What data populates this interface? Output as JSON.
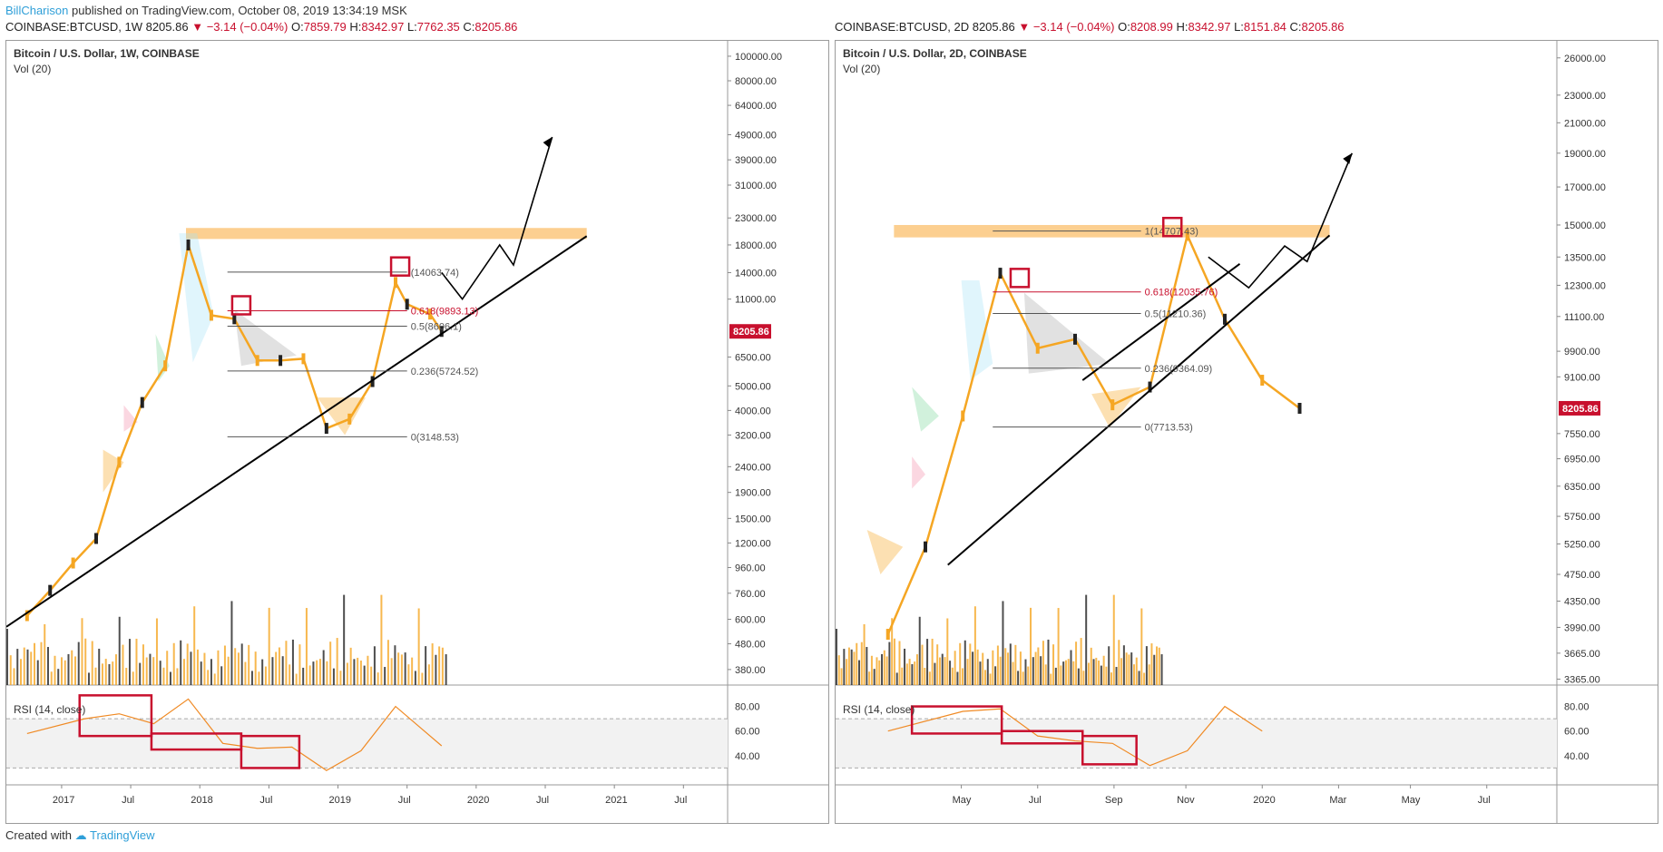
{
  "header": {
    "author": "BillCharison",
    "published_text": "published on TradingView.com, October 08, 2019 13:34:19 MSK"
  },
  "footer": {
    "created_with": "Created with",
    "brand": "TradingView"
  },
  "accent_colors": {
    "up": "#f5a623",
    "down": "#222222",
    "price_tag": "#c8102e",
    "resistance": "#fbbf6b",
    "highlight_box": "#c8102e",
    "rsi_line": "#f08a24"
  },
  "left": {
    "symbol_label": "COINBASE:BTCUSD, 1W",
    "last": "8205.86",
    "change": "▼ −3.14 (−0.04%)",
    "ohlc": [
      {
        "k": "O:",
        "v": "7859.79"
      },
      {
        "k": "H:",
        "v": "8342.97"
      },
      {
        "k": "L:",
        "v": "7762.35"
      },
      {
        "k": "C:",
        "v": "8205.86"
      }
    ],
    "title": "Bitcoin / U.S. Dollar, 1W, COINBASE",
    "vol": "Vol (20)",
    "rsi": "RSI (14, close)",
    "price_tag": "8205.86"
  },
  "right": {
    "symbol_label": "COINBASE:BTCUSD, 2D",
    "last": "8205.86",
    "change": "▼ −3.14 (−0.04%)",
    "ohlc": [
      {
        "k": "O:",
        "v": "8208.99"
      },
      {
        "k": "H:",
        "v": "8342.97"
      },
      {
        "k": "L:",
        "v": "8151.84"
      },
      {
        "k": "C:",
        "v": "8205.86"
      }
    ],
    "title": "Bitcoin / U.S. Dollar, 2D, COINBASE",
    "vol": "Vol (20)",
    "rsi": "RSI (14, close)",
    "price_tag": "8205.86"
  },
  "chart_data": [
    {
      "type": "line",
      "title": "Bitcoin / U.S. Dollar, 1W, COINBASE",
      "scale": "log",
      "y_ticks": [
        "100000.00",
        "80000.00",
        "64000.00",
        "49000.00",
        "39000.00",
        "31000.00",
        "23000.00",
        "18000.00",
        "14000.00",
        "11000.00",
        "8205.86",
        "6500.00",
        "5000.00",
        "4000.00",
        "3200.00",
        "2400.00",
        "1900.00",
        "1500.00",
        "1200.00",
        "960.00",
        "760.00",
        "600.00",
        "480.00",
        "380.00"
      ],
      "x_ticks": [
        "2017",
        "Jul",
        "2018",
        "Jul",
        "2019",
        "Jul",
        "2020",
        "Jul",
        "2021",
        "Jul"
      ],
      "rsi_ticks": [
        "80.00",
        "60.00",
        "40.00"
      ],
      "price_series": {
        "name": "BTCUSD weekly close (approx.)",
        "x": [
          "2016-10",
          "2016-12",
          "2017-02",
          "2017-04",
          "2017-06",
          "2017-08",
          "2017-10",
          "2017-12",
          "2018-02",
          "2018-04",
          "2018-06",
          "2018-08",
          "2018-10",
          "2018-12",
          "2019-02",
          "2019-04",
          "2019-06",
          "2019-07",
          "2019-09",
          "2019-10"
        ],
        "y": [
          620,
          780,
          1000,
          1250,
          2500,
          4300,
          6000,
          18000,
          9500,
          9200,
          6300,
          6300,
          6400,
          3400,
          3700,
          5200,
          12800,
          10500,
          9600,
          8205
        ]
      },
      "fib_levels": [
        {
          "label": "(14063.74)",
          "value": 14063.74
        },
        {
          "label": "0.618(9893.13)",
          "value": 9893.13
        },
        {
          "label": "0.5(8606.1)",
          "value": 8606.1
        },
        {
          "label": "0.236(5724.52)",
          "value": 5724.52
        },
        {
          "label": "0(3148.53)",
          "value": 3148.53
        }
      ],
      "rsi_series": {
        "name": "RSI (14, close)",
        "x": [
          "2016-10",
          "2017-03",
          "2017-06",
          "2017-09",
          "2017-12",
          "2018-03",
          "2018-06",
          "2018-09",
          "2018-12",
          "2019-03",
          "2019-06",
          "2019-08",
          "2019-10"
        ],
        "y": [
          58,
          70,
          74,
          66,
          86,
          50,
          46,
          47,
          28,
          44,
          80,
          64,
          48
        ]
      }
    },
    {
      "type": "line",
      "title": "Bitcoin / U.S. Dollar, 2D, COINBASE",
      "scale": "log",
      "y_ticks": [
        "26000.00",
        "23000.00",
        "21000.00",
        "19000.00",
        "17000.00",
        "15000.00",
        "13500.00",
        "12300.00",
        "11100.00",
        "9900.00",
        "9100.00",
        "8205.86",
        "7550.00",
        "6950.00",
        "6350.00",
        "5750.00",
        "5250.00",
        "4750.00",
        "4350.00",
        "3990.00",
        "3665.00",
        "3365.00"
      ],
      "x_ticks": [
        "May",
        "Jul",
        "Sep",
        "Nov",
        "2020",
        "Mar",
        "May",
        "Jul"
      ],
      "rsi_ticks": [
        "80.00",
        "60.00",
        "40.00"
      ],
      "price_series": {
        "name": "BTCUSD 2-day close (approx.)",
        "x": [
          "2019-03",
          "2019-04",
          "2019-05",
          "2019-06",
          "2019-07",
          "2019-08",
          "2019-09",
          "2019-10",
          "2019-11",
          "2019-12",
          "2020-01",
          "2020-02"
        ],
        "y": [
          3900,
          5200,
          8000,
          12800,
          10000,
          10300,
          8300,
          8800,
          14500,
          11000,
          9000,
          8205
        ]
      },
      "fib_levels": [
        {
          "label": "1(14707.43)",
          "value": 14707.43
        },
        {
          "label": "0.618(12035.76)",
          "value": 12035.76
        },
        {
          "label": "0.5(11210.36)",
          "value": 11210.36
        },
        {
          "label": "0.236(9364.09)",
          "value": 9364.09
        },
        {
          "label": "0(7713.53)",
          "value": 7713.53
        }
      ],
      "rsi_series": {
        "name": "RSI (14, close)",
        "x": [
          "2019-03",
          "2019-05",
          "2019-06",
          "2019-07",
          "2019-08",
          "2019-09",
          "2019-10",
          "2019-11",
          "2019-12",
          "2020-01"
        ],
        "y": [
          60,
          76,
          78,
          56,
          52,
          50,
          32,
          44,
          80,
          60
        ]
      }
    }
  ]
}
